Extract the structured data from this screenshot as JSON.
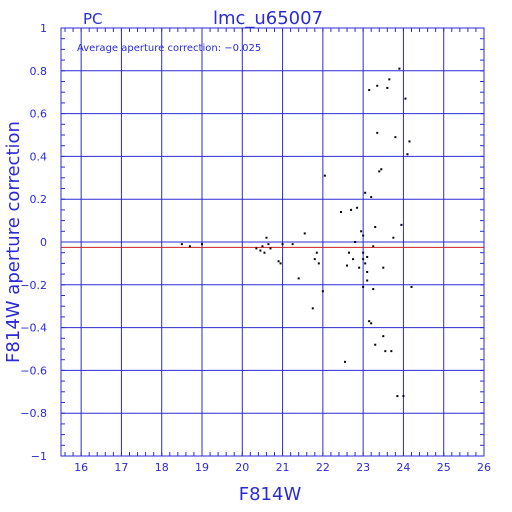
{
  "chart_data": {
    "type": "scatter",
    "title": "lmc_u65007",
    "subtitle": "PC",
    "xlabel": "F814W",
    "ylabel": "F814W aperture correction",
    "annotation": "Average aperture correction: −0.025",
    "xlim": [
      15.5,
      26
    ],
    "ylim": [
      -1,
      1
    ],
    "x_ticks": [
      16,
      17,
      18,
      19,
      20,
      21,
      22,
      23,
      24,
      25,
      26
    ],
    "x_tick_labels": [
      "16",
      "17",
      "18",
      "19",
      "20",
      "21",
      "22",
      "23",
      "24",
      "25",
      "26"
    ],
    "y_ticks": [
      -1,
      -0.8,
      -0.6,
      -0.4,
      -0.2,
      0,
      0.2,
      0.4,
      0.6,
      0.8,
      1
    ],
    "y_tick_labels": [
      "−1",
      "−0.8",
      "−0.6",
      "−0.4",
      "−0.2",
      "0",
      "0.2",
      "0.4",
      "0.6",
      "0.8",
      "1"
    ],
    "grid": true,
    "reference_lines": [
      {
        "y": 0,
        "color": "#2b2bd6"
      },
      {
        "y": -0.025,
        "color": "#cc2222"
      }
    ],
    "series": [
      {
        "x": [
          18.5,
          18.7,
          19.0,
          20.35,
          20.45,
          20.5,
          20.55,
          20.6,
          20.65,
          20.7,
          20.9,
          20.95,
          21.0,
          21.25,
          21.4,
          21.55,
          21.75,
          21.8,
          21.85,
          21.9,
          22.0,
          22.05,
          22.45,
          22.55,
          22.6,
          22.65,
          22.7,
          22.75,
          22.8,
          22.85,
          22.9,
          22.95,
          23.0,
          23.0,
          23.0,
          23.0,
          23.05,
          23.05,
          23.1,
          23.1,
          23.1,
          23.15,
          23.15,
          23.2,
          23.2,
          23.25,
          23.25,
          23.3,
          23.3,
          23.35,
          23.35,
          23.4,
          23.45,
          23.5,
          23.5,
          23.55,
          23.6,
          23.65,
          23.7,
          23.75,
          23.8,
          23.85,
          23.9,
          23.95,
          24.0,
          24.05,
          24.1,
          24.15,
          24.2
        ],
        "y": [
          -0.01,
          -0.02,
          -0.01,
          -0.03,
          -0.04,
          -0.02,
          -0.05,
          0.02,
          -0.01,
          -0.03,
          -0.09,
          -0.1,
          -0.01,
          -0.01,
          -0.17,
          0.04,
          -0.31,
          -0.08,
          -0.05,
          -0.1,
          -0.23,
          0.31,
          0.14,
          -0.56,
          -0.11,
          -0.05,
          0.15,
          -0.08,
          0.0,
          0.16,
          -0.12,
          0.05,
          0.03,
          -0.05,
          -0.21,
          -0.08,
          0.23,
          -0.1,
          -0.14,
          -0.07,
          -0.18,
          0.71,
          -0.37,
          0.21,
          -0.38,
          -0.02,
          -0.22,
          0.07,
          -0.48,
          0.73,
          0.51,
          0.33,
          0.34,
          -0.12,
          -0.44,
          -0.51,
          0.72,
          0.76,
          -0.51,
          0.02,
          0.49,
          -0.72,
          0.81,
          0.08,
          -0.72,
          0.67,
          0.41,
          0.47,
          -0.21
        ]
      }
    ]
  },
  "colors": {
    "axis": "#2b2bd6",
    "grid": "#2b2bd6",
    "points": "#000000",
    "mean_line": "#cc2222",
    "zero_line": "#2b2bd6"
  }
}
